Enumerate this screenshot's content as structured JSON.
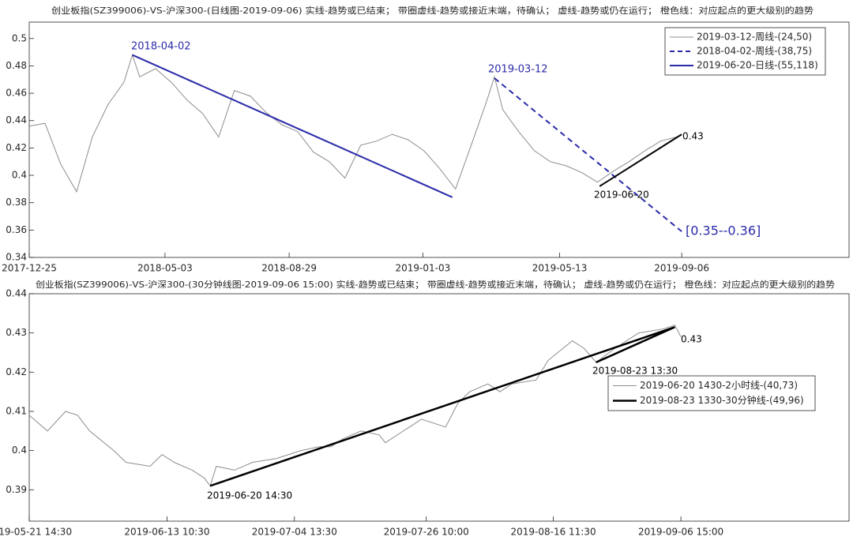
{
  "chart_data": [
    {
      "type": "line",
      "title": "创业板指(SZ399006)-VS-沪深300-(日线图-2019-09-06)  实线-趋势或已结束；  带圈虚线-趋势或接近末端，待确认；  虚线-趋势或仍在运行；  橙色线：对应起点的更大级别的趋势",
      "x": [
        "2017-12-25",
        "2018-01-09",
        "2018-01-24",
        "2018-02-08",
        "2018-02-23",
        "2018-03-10",
        "2018-03-25",
        "2018-04-02",
        "2018-04-09",
        "2018-04-24",
        "2018-05-09",
        "2018-05-24",
        "2018-06-08",
        "2018-06-23",
        "2018-07-08",
        "2018-07-23",
        "2018-08-07",
        "2018-08-22",
        "2018-09-06",
        "2018-09-21",
        "2018-10-06",
        "2018-10-21",
        "2018-11-05",
        "2018-11-20",
        "2018-12-05",
        "2018-12-20",
        "2019-01-04",
        "2019-01-19",
        "2019-02-03",
        "2019-02-18",
        "2019-03-05",
        "2019-03-12",
        "2019-03-20",
        "2019-04-04",
        "2019-04-19",
        "2019-05-04",
        "2019-05-19",
        "2019-06-03",
        "2019-06-18",
        "2019-07-03",
        "2019-07-18",
        "2019-08-02",
        "2019-08-17",
        "2019-09-01"
      ],
      "series": [
        {
          "name": "2019-03-12-周线-(24,50)",
          "color": "#8c8c8c",
          "style": "solid",
          "width": 1,
          "values": [
            0.436,
            0.438,
            0.408,
            0.388,
            0.428,
            0.452,
            0.468,
            0.488,
            0.472,
            0.478,
            0.468,
            0.455,
            0.445,
            0.428,
            0.462,
            0.458,
            0.446,
            0.437,
            0.432,
            0.417,
            0.41,
            0.398,
            0.422,
            0.425,
            0.43,
            0.426,
            0.418,
            0.405,
            0.39,
            0.422,
            0.455,
            0.472,
            0.448,
            0.432,
            0.418,
            0.41,
            0.407,
            0.402,
            0.395,
            0.403,
            0.41,
            0.418,
            0.425,
            0.428
          ]
        },
        {
          "name": "2018-04-02-周线-(38,75)",
          "color": "#2a2aa8",
          "style": "dashed",
          "width": 2,
          "x": [
            "2019-03-12",
            "2019-09-06"
          ],
          "values": [
            0.471,
            0.359
          ]
        },
        {
          "name": "2019-06-20-日线-(55,118)",
          "color": "#2a2aa8",
          "style": "solid",
          "width": 2,
          "x": [
            "2018-04-02",
            "2019-01-31"
          ],
          "values": [
            0.488,
            0.384
          ]
        },
        {
          "color": "#000000",
          "style": "solid",
          "width": 2,
          "x": [
            "2019-06-20",
            "2019-09-06"
          ],
          "values": [
            0.392,
            0.43
          ]
        }
      ],
      "xlim": [
        "2017-12-25",
        "2020-02-12"
      ],
      "xticks": [
        "2017-12-25",
        "2018-05-03",
        "2018-08-29",
        "2019-01-03",
        "2019-05-13",
        "2019-09-06"
      ],
      "ylim": [
        0.34,
        0.512
      ],
      "yticks": [
        0.34,
        0.36,
        0.38,
        0.4,
        0.42,
        0.44,
        0.46,
        0.48,
        0.5
      ],
      "legend": "upper right",
      "annotations": [
        {
          "text": "2018-04-02",
          "color": "#2a2aa8"
        },
        {
          "text": "2019-03-12",
          "color": "#2a2aa8"
        },
        {
          "text": "2019-06-20",
          "color": "#000000"
        },
        {
          "text": "0.43",
          "color": "#000000"
        },
        {
          "text": "[0.35--0.36]",
          "color": "#2a2aa8"
        }
      ]
    },
    {
      "type": "line",
      "title": "创业板指(SZ399006)-VS-沪深300-(30分钟线图-2019-09-06 15:00)  实线-趋势或已结束；  带圈虚线-趋势或接近末端，待确认；  虚线-趋势或仍在运行；  橙色线：对应起点的更大级别的趋势",
      "x": [
        "2019-05-21 14:30",
        "2019-05-24 15:00",
        "2019-05-27 15:00",
        "2019-05-29 15:00",
        "2019-05-31 15:00",
        "2019-06-04 15:00",
        "2019-06-06 15:00",
        "2019-06-10 15:00",
        "2019-06-12 15:00",
        "2019-06-14 15:00",
        "2019-06-17 15:00",
        "2019-06-19 15:00",
        "2019-06-20 14:30",
        "2019-06-21 15:00",
        "2019-06-24 15:00",
        "2019-06-27 15:00",
        "2019-07-01 15:00",
        "2019-07-03 15:00",
        "2019-07-05 15:00",
        "2019-07-08 15:00",
        "2019-07-10 15:00",
        "2019-07-12 15:00",
        "2019-07-15 15:00",
        "2019-07-18 15:00",
        "2019-07-19 15:00",
        "2019-07-23 15:00",
        "2019-07-25 15:00",
        "2019-07-29 15:00",
        "2019-07-31 15:00",
        "2019-08-02 15:00",
        "2019-08-05 15:00",
        "2019-08-07 15:00",
        "2019-08-09 15:00",
        "2019-08-13 15:00",
        "2019-08-15 15:00",
        "2019-08-19 15:00",
        "2019-08-21 15:00",
        "2019-08-23 13:30",
        "2019-08-26 15:00",
        "2019-08-28 15:00",
        "2019-08-30 15:00",
        "2019-09-03 15:00",
        "2019-09-05 15:00",
        "2019-09-06 15:00"
      ],
      "series": [
        {
          "name": "2019-06-20 1430-2小时线-(40,73)",
          "color": "#8c8c8c",
          "style": "solid",
          "width": 1,
          "values": [
            0.409,
            0.405,
            0.41,
            0.409,
            0.405,
            0.4,
            0.397,
            0.396,
            0.399,
            0.397,
            0.395,
            0.393,
            0.391,
            0.396,
            0.395,
            0.397,
            0.398,
            0.399,
            0.4,
            0.401,
            0.401,
            0.403,
            0.405,
            0.404,
            0.402,
            0.406,
            0.408,
            0.406,
            0.412,
            0.415,
            0.417,
            0.415,
            0.417,
            0.418,
            0.423,
            0.428,
            0.426,
            0.4225,
            0.426,
            0.428,
            0.43,
            0.431,
            0.432,
            0.429
          ]
        },
        {
          "name": "2019-08-23 1330-30分钟线-(49,96)",
          "color": "#000000",
          "style": "solid",
          "width": 2.5,
          "x": [
            "2019-06-20 14:30",
            "2019-09-05 15:00"
          ],
          "values": [
            0.391,
            0.4315
          ]
        },
        {
          "color": "#000000",
          "style": "solid",
          "width": 2.5,
          "x": [
            "2019-08-23 13:30",
            "2019-09-05 15:00"
          ],
          "values": [
            0.4225,
            0.4315
          ]
        }
      ],
      "xlim": [
        "2019-05-21 14:30",
        "2019-10-04 12:00"
      ],
      "xticks": [
        "2019-05-21 14:30",
        "2019-06-13 10:30",
        "2019-07-04 13:30",
        "2019-07-26 10:00",
        "2019-08-16 11:30",
        "2019-09-06 15:00"
      ],
      "ylim": [
        0.382,
        0.44
      ],
      "yticks": [
        0.39,
        0.4,
        0.41,
        0.42,
        0.43,
        0.44
      ],
      "legend": "right",
      "annotations": [
        {
          "text": "2019-06-20 14:30",
          "color": "#000000"
        },
        {
          "text": "2019-08-23 13:30",
          "color": "#000000"
        },
        {
          "text": "0.43",
          "color": "#000000"
        }
      ]
    }
  ]
}
